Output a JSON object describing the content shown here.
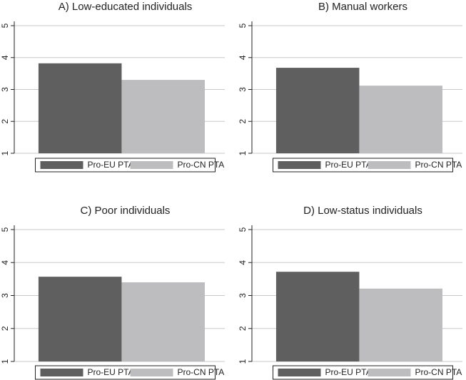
{
  "chart_data": [
    {
      "type": "bar",
      "title": "A) Low-educated individuals",
      "categories": [
        null
      ],
      "series": [
        {
          "name": "Pro-EU PTA",
          "color": "#5f5f5f",
          "values": [
            3.82
          ]
        },
        {
          "name": "Pro-CN PTA",
          "color": "#bdbdbf",
          "values": [
            3.3
          ]
        }
      ],
      "ylim": [
        1,
        5
      ],
      "yticks": [
        1,
        2,
        3,
        4,
        5
      ],
      "grid": true
    },
    {
      "type": "bar",
      "title": "B) Manual workers",
      "categories": [
        null
      ],
      "series": [
        {
          "name": "Pro-EU PTA",
          "color": "#5f5f5f",
          "values": [
            3.68
          ]
        },
        {
          "name": "Pro-CN PTA",
          "color": "#bdbdbf",
          "values": [
            3.12
          ]
        }
      ],
      "ylim": [
        1,
        5
      ],
      "yticks": [
        1,
        2,
        3,
        4,
        5
      ],
      "grid": true
    },
    {
      "type": "bar",
      "title": "C) Poor individuals",
      "categories": [
        null
      ],
      "series": [
        {
          "name": "Pro-EU PTA",
          "color": "#5f5f5f",
          "values": [
            3.57
          ]
        },
        {
          "name": "Pro-CN PTA",
          "color": "#bdbdbf",
          "values": [
            3.4
          ]
        }
      ],
      "ylim": [
        1,
        5
      ],
      "yticks": [
        1,
        2,
        3,
        4,
        5
      ],
      "grid": true
    },
    {
      "type": "bar",
      "title": "D) Low-status individuals",
      "categories": [
        null
      ],
      "series": [
        {
          "name": "Pro-EU PTA",
          "color": "#5f5f5f",
          "values": [
            3.72
          ]
        },
        {
          "name": "Pro-CN PTA",
          "color": "#bdbdbf",
          "values": [
            3.21
          ]
        }
      ],
      "ylim": [
        1,
        5
      ],
      "yticks": [
        1,
        2,
        3,
        4,
        5
      ],
      "grid": true
    }
  ]
}
